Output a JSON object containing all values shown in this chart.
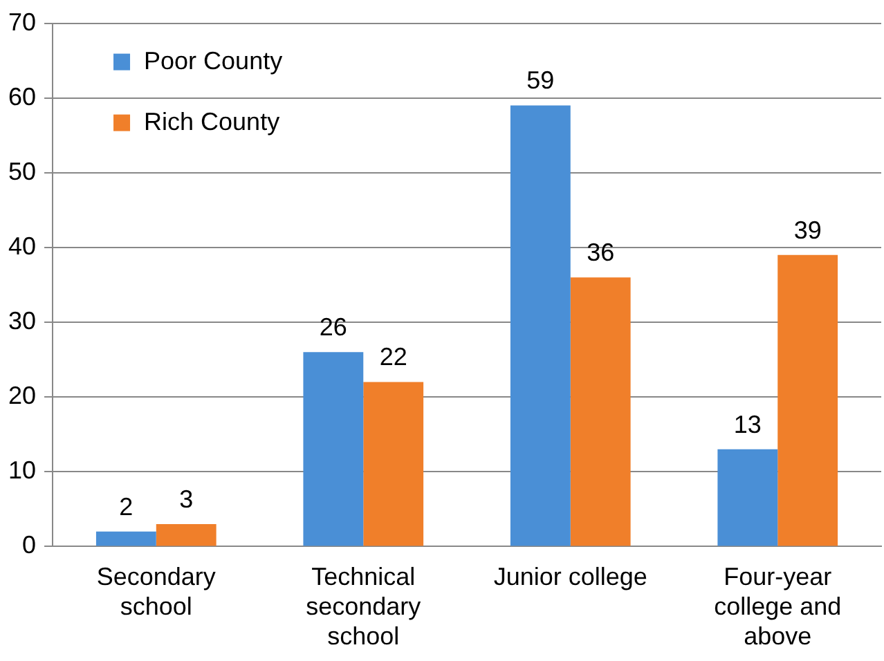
{
  "chart_data": {
    "type": "bar",
    "categories": [
      "Secondary school",
      "Technical secondary school",
      "Junior college",
      "Four-year college and above"
    ],
    "series": [
      {
        "name": "Poor County",
        "color": "#4a8fd6",
        "values": [
          2,
          26,
          59,
          13
        ]
      },
      {
        "name": "Rich County",
        "color": "#f07f2a",
        "values": [
          3,
          22,
          36,
          39
        ]
      }
    ],
    "ylim": [
      0,
      70
    ],
    "yticks": [
      0,
      10,
      20,
      30,
      40,
      50,
      60,
      70
    ],
    "grid": "y",
    "legend": "top left",
    "data_labels": true
  }
}
